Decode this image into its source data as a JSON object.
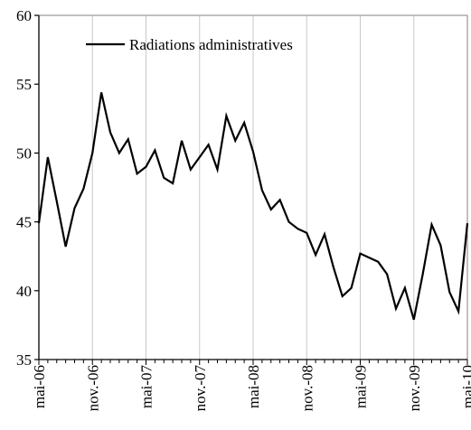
{
  "chart_data": {
    "type": "line",
    "title": "",
    "xlabel": "",
    "ylabel": "",
    "ylim": [
      35,
      60
    ],
    "y_ticks": [
      35,
      40,
      45,
      50,
      55,
      60
    ],
    "grid": "vertical",
    "legend_position": "top-left",
    "x_tick_labels": [
      "mai-06",
      "nov.-06",
      "mai-07",
      "nov.-07",
      "mai-08",
      "nov.-08",
      "mai-09",
      "nov.-09",
      "mai-10"
    ],
    "x_tick_index": [
      0,
      6,
      12,
      18,
      24,
      30,
      36,
      42,
      48
    ],
    "series": [
      {
        "name": "Radiations administratives",
        "color": "#000000",
        "values": [
          44.9,
          49.7,
          46.5,
          43.2,
          46.0,
          47.4,
          50.0,
          54.4,
          51.5,
          50.0,
          51.0,
          48.5,
          49.0,
          50.2,
          48.2,
          47.8,
          50.9,
          48.8,
          49.7,
          50.6,
          48.8,
          52.7,
          50.9,
          52.2,
          50.1,
          47.3,
          45.9,
          46.6,
          45.0,
          44.5,
          44.2,
          42.6,
          44.1,
          41.7,
          39.6,
          40.2,
          42.7,
          42.4,
          42.1,
          41.2,
          38.7,
          40.2,
          37.9,
          41.2,
          44.8,
          43.3,
          39.9,
          38.5,
          44.9
        ]
      }
    ]
  }
}
